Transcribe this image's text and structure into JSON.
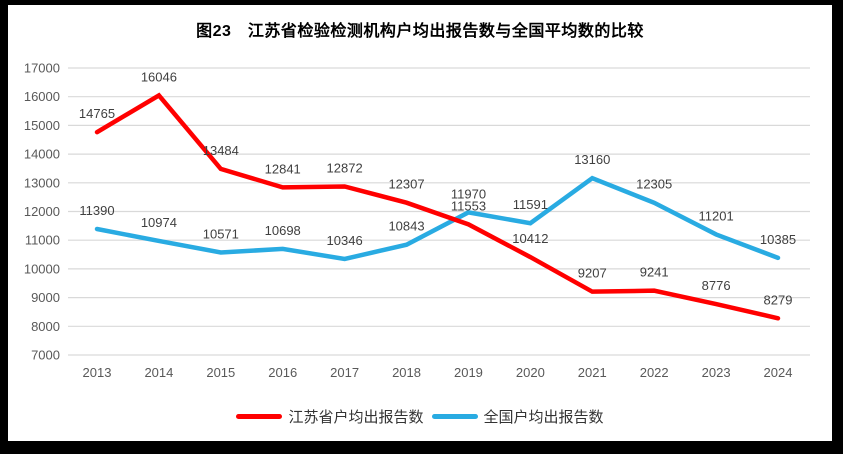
{
  "chart_data": {
    "type": "line",
    "title": "图23　江苏省检验检测机构户均出报告数与全国平均数的比较",
    "categories": [
      "2013",
      "2014",
      "2015",
      "2016",
      "2017",
      "2018",
      "2019",
      "2020",
      "2021",
      "2022",
      "2023",
      "2024"
    ],
    "series": [
      {
        "name": "江苏省户均出报告数",
        "color": "#FF0000",
        "values": [
          14765,
          16046,
          13484,
          12841,
          12872,
          12307,
          11553,
          10412,
          9207,
          9241,
          8776,
          8279
        ]
      },
      {
        "name": "全国户均出报告数",
        "color": "#29ABE2",
        "values": [
          11390,
          10974,
          10571,
          10698,
          10346,
          10843,
          11970,
          11591,
          13160,
          12305,
          11201,
          10385
        ]
      }
    ],
    "ylim": [
      7000,
      17000
    ],
    "ytick_step": 1000,
    "xlabel": "",
    "ylabel": "",
    "grid": true,
    "data_labels": true,
    "legend_position": "bottom"
  },
  "colors": {
    "frame": "#000000",
    "canvas": "#ffffff",
    "grid": "#D9D9D9",
    "axis_text": "#595959",
    "data_label_text": "#404040",
    "title_text": "#000000",
    "jiangsu_line": "#FF0000",
    "national_line": "#29ABE2"
  }
}
